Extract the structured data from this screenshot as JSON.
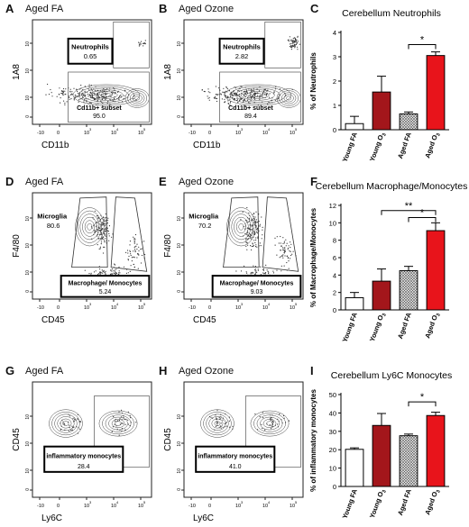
{
  "panels": {
    "A": {
      "letter": "A",
      "title": "Aged FA",
      "xlabel": "CD11b",
      "ylabel": "1A8",
      "gates": [
        {
          "name": "Neutrophils",
          "value": "0.65"
        },
        {
          "name": "Cd11b+ subset",
          "value": "95.0"
        }
      ]
    },
    "B": {
      "letter": "B",
      "title": "Aged Ozone",
      "xlabel": "CD11b",
      "ylabel": "1A8",
      "gates": [
        {
          "name": "Neutrophils",
          "value": "2.82"
        },
        {
          "name": "Cd11b+ subset",
          "value": "89.4"
        }
      ]
    },
    "D": {
      "letter": "D",
      "title": "Aged FA",
      "xlabel": "CD45",
      "ylabel": "F4/80",
      "gates": [
        {
          "name": "Microglia",
          "value": "80.6"
        },
        {
          "name": "Macrophage/ Monocytes",
          "value": "5.24"
        }
      ]
    },
    "E": {
      "letter": "E",
      "title": "Aged Ozone",
      "xlabel": "CD45",
      "ylabel": "F4/80",
      "gates": [
        {
          "name": "Microglia",
          "value": "70.2"
        },
        {
          "name": "Macrophage/ Monocytes",
          "value": "9.03"
        }
      ]
    },
    "G": {
      "letter": "G",
      "title": "Aged FA",
      "xlabel": "Ly6C",
      "ylabel": "CD45",
      "gates": [
        {
          "name": "inflammatory monocytes",
          "value": "28.4"
        }
      ]
    },
    "H": {
      "letter": "H",
      "title": "Aged Ozone",
      "xlabel": "Ly6C",
      "ylabel": "CD45",
      "gates": [
        {
          "name": "inflammatory monocytes",
          "value": "41.0"
        }
      ]
    }
  },
  "flow_ticks": {
    "ten": "10",
    "exps": [
      "3",
      "4",
      "5"
    ],
    "neg": "-10",
    "zero": "0"
  },
  "colors": {
    "young_fa": "#ffffff",
    "young_o3": "#a3161b",
    "aged_fa": "#b0b0b0",
    "aged_o3": "#e8141b"
  },
  "chart_data": [
    {
      "type": "bar",
      "letter": "C",
      "title": "Cerebellum Neutrophils",
      "ylabel": "% of Neutrophils",
      "ylim": [
        0,
        4
      ],
      "yticks": [
        0,
        1,
        2,
        3,
        4
      ],
      "categories": [
        "Young FA",
        "Young O3",
        "Aged FA",
        "Aged O3"
      ],
      "values": [
        0.25,
        1.55,
        0.65,
        3.05
      ],
      "errors": [
        0.3,
        0.65,
        0.08,
        0.15
      ],
      "sig": [
        {
          "from": 2,
          "to": 3,
          "label": "*",
          "y": 3.5
        }
      ]
    },
    {
      "type": "bar",
      "letter": "F",
      "title": "Cerebellum Macrophage/Monocytes",
      "ylabel": "% of Macrophage/Monocytes",
      "ylim": [
        0,
        12
      ],
      "yticks": [
        0,
        2,
        4,
        6,
        8,
        10,
        12
      ],
      "categories": [
        "Young FA",
        "Young O3",
        "Aged FA",
        "Aged O3"
      ],
      "values": [
        1.4,
        3.3,
        4.5,
        9.1
      ],
      "errors": [
        0.6,
        1.4,
        0.5,
        0.9
      ],
      "sig": [
        {
          "from": 1,
          "to": 3,
          "label": "**",
          "y": 11.4
        },
        {
          "from": 2,
          "to": 3,
          "label": "*",
          "y": 10.6
        }
      ]
    },
    {
      "type": "bar",
      "letter": "I",
      "title": "Cerebellum Ly6C Monocytes",
      "ylabel": "% of inflammatory monocytes",
      "ylim": [
        0,
        50
      ],
      "yticks": [
        0,
        10,
        20,
        30,
        40,
        50
      ],
      "categories": [
        "Young FA",
        "Young O3",
        "Aged FA",
        "Aged O3"
      ],
      "values": [
        20.2,
        33.2,
        27.6,
        38.6
      ],
      "errors": [
        0.8,
        6.5,
        0.9,
        1.8
      ],
      "sig": [
        {
          "from": 2,
          "to": 3,
          "label": "*",
          "y": 46
        }
      ]
    }
  ]
}
